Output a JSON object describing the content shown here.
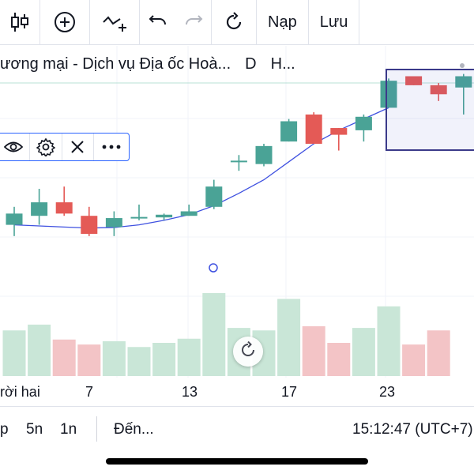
{
  "toolbar": {
    "load_label": "Nạp",
    "save_label": "Lưu",
    "icons": [
      "candlestick-icon",
      "plus-circle-icon",
      "indicator-icon",
      "undo-icon",
      "redo-icon",
      "refresh-icon"
    ]
  },
  "header": {
    "symbol_name": "ương mại - Dịch vụ Địa ốc Hoà...",
    "interval": "D",
    "exchange": "H..."
  },
  "floating_toolbar": {
    "icons": [
      "eye-icon",
      "gear-icon",
      "close-icon",
      "more-icon"
    ]
  },
  "time_axis": {
    "labels": [
      "rời hai",
      "7",
      "13",
      "17",
      "23"
    ]
  },
  "bottom_bar": {
    "ranges": [
      "p",
      "5n",
      "1n"
    ],
    "goto_label": "Đến...",
    "clock": "15:12:47 (UTC+7)"
  },
  "colors": {
    "up": "#4aa396",
    "down": "#e45a56",
    "ma_line": "#3f51e0",
    "vol_up": "#c9e6d7",
    "vol_down": "#f3c4c6",
    "selection": "#3b3a8a"
  },
  "chart_data": {
    "type": "candlestick",
    "candles": [
      {
        "o": 44,
        "h": 52,
        "l": 39,
        "c": 49
      },
      {
        "o": 48,
        "h": 60,
        "l": 44,
        "c": 54
      },
      {
        "o": 54,
        "h": 61,
        "l": 48,
        "c": 49
      },
      {
        "o": 48,
        "h": 52,
        "l": 39,
        "c": 40
      },
      {
        "o": 43,
        "h": 50,
        "l": 39,
        "c": 47
      },
      {
        "o": 47,
        "h": 53,
        "l": 46,
        "c": 47.5
      },
      {
        "o": 47.3,
        "h": 49,
        "l": 46,
        "c": 48.5
      },
      {
        "o": 48,
        "h": 53,
        "l": 48,
        "c": 50
      },
      {
        "o": 52,
        "h": 64,
        "l": 51,
        "c": 61
      },
      {
        "o": 72.5,
        "h": 75,
        "l": 68,
        "c": 72.5
      },
      {
        "o": 71,
        "h": 80,
        "l": 70,
        "c": 79
      },
      {
        "o": 81,
        "h": 91,
        "l": 81,
        "c": 90
      },
      {
        "o": 93,
        "h": 94,
        "l": 80,
        "c": 80
      },
      {
        "o": 87,
        "h": 87,
        "l": 77,
        "c": 84
      },
      {
        "o": 86,
        "h": 93,
        "l": 81,
        "c": 92
      },
      {
        "o": 96,
        "h": 109,
        "l": 96,
        "c": 108
      },
      {
        "o": 110,
        "h": 110,
        "l": 106,
        "c": 106
      },
      {
        "o": 106,
        "h": 107,
        "l": 99,
        "c": 102
      },
      {
        "o": 105,
        "h": 111,
        "l": 93,
        "c": 110
      }
    ],
    "ma": [
      44,
      43.5,
      43,
      42.6,
      42.8,
      44,
      46,
      48.5,
      52.5,
      58,
      64,
      72,
      80,
      86,
      91,
      96
    ]
  }
}
